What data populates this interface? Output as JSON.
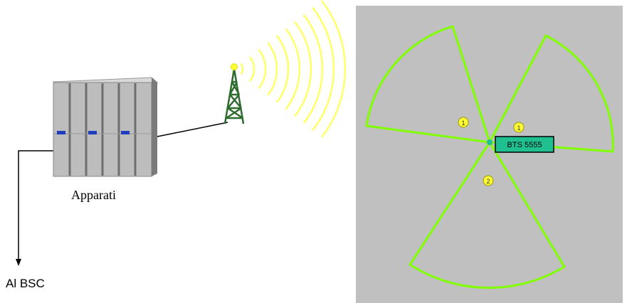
{
  "equipment": {
    "label": "Apparati",
    "icon": "equipment-rack-icon"
  },
  "bsc_link": {
    "label": "Al BSC",
    "icon": "arrow-down-icon"
  },
  "antenna": {
    "icon": "antenna-tower-icon"
  },
  "coverage_map": {
    "bts_label": "BTS 5555",
    "sector_markers": [
      "1",
      "1",
      "2"
    ],
    "colors": {
      "background": "#c0c0c0",
      "sector_outline": "#80ff00",
      "bts_box": "#1fbf8f",
      "marker": "#ffff33",
      "radio_waves": "#ffff66",
      "tower": "#2e6b2e"
    }
  }
}
